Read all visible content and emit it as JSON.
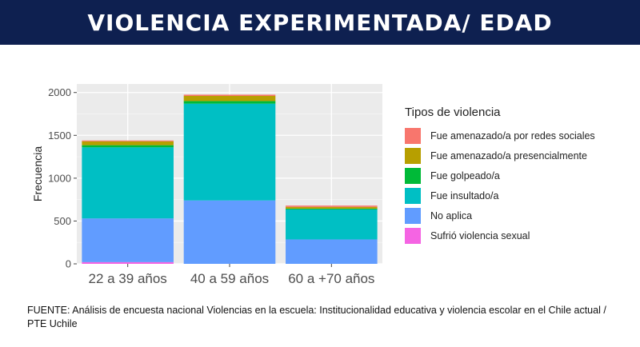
{
  "header": {
    "title": "VIOLENCIA EXPERIMENTADA/ EDAD",
    "background": "#0e2050"
  },
  "chart_data": {
    "type": "bar",
    "stacked": true,
    "categories": [
      "22 a 39 años",
      "40 a 59 años",
      "60 a +70 años"
    ],
    "ylabel": "Frecuencia",
    "xlabel": "",
    "ylim": [
      0,
      2100
    ],
    "yticks": [
      0,
      500,
      1000,
      1500,
      2000
    ],
    "grid": true,
    "legend_title": "Tipos de violencia",
    "legend_position": "right",
    "series": [
      {
        "name": "Sufrió violencia sexual",
        "color": "#F564E3",
        "values": [
          20,
          0,
          0
        ]
      },
      {
        "name": "No aplica",
        "color": "#619CFF",
        "values": [
          510,
          740,
          285
        ]
      },
      {
        "name": "Fue insultado/a",
        "color": "#00BFC4",
        "values": [
          830,
          1130,
          350
        ]
      },
      {
        "name": "Fue golpeado/a",
        "color": "#00BA38",
        "values": [
          25,
          30,
          10
        ]
      },
      {
        "name": "Fue amenazado/a presencialmente",
        "color": "#B79F00",
        "values": [
          45,
          60,
          20
        ]
      },
      {
        "name": "Fue amenazado/a por redes sociales",
        "color": "#F8766D",
        "values": [
          10,
          15,
          15
        ]
      }
    ]
  },
  "source": {
    "text": "FUENTE: Análisis de encuesta nacional Violencias en la escuela: Institucionalidad educativa y violencia escolar en el Chile actual / PTE Uchile"
  }
}
